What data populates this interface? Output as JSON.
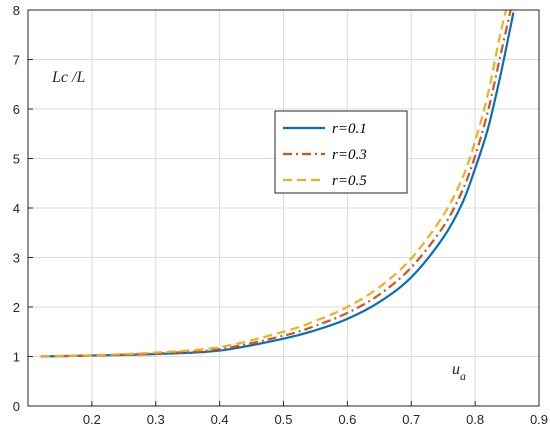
{
  "chart_data": {
    "type": "line",
    "title": "",
    "xlabel": "",
    "ylabel": "",
    "xlim": [
      0.1,
      0.9
    ],
    "ylim": [
      0,
      8
    ],
    "xticks": [
      "0.2",
      "0.3",
      "0.4",
      "0.5",
      "0.6",
      "0.7",
      "0.8",
      "0.9"
    ],
    "yticks": [
      "0",
      "1",
      "2",
      "3",
      "4",
      "5",
      "6",
      "7",
      "8"
    ],
    "grid": true,
    "legend_position": "center-right",
    "annotations": [
      {
        "text": "Lc /L"
      },
      {
        "text": "u",
        "subscript": "a"
      }
    ],
    "x": [
      0.12,
      0.2,
      0.3,
      0.4,
      0.5,
      0.55,
      0.6,
      0.65,
      0.7,
      0.75,
      0.78,
      0.8,
      0.82,
      0.84,
      0.86
    ],
    "series": [
      {
        "name": "r=0.1",
        "color": "#0072BD",
        "style": "solid",
        "values": [
          1.0,
          1.02,
          1.05,
          1.12,
          1.36,
          1.53,
          1.76,
          2.1,
          2.6,
          3.4,
          4.1,
          4.8,
          5.6,
          6.7,
          7.95
        ]
      },
      {
        "name": "r=0.3",
        "color": "#D95319",
        "style": "dashdot",
        "values": [
          1.0,
          1.02,
          1.06,
          1.15,
          1.42,
          1.62,
          1.88,
          2.25,
          2.8,
          3.62,
          4.35,
          5.05,
          5.95,
          7.1,
          8.25
        ]
      },
      {
        "name": "r=0.5",
        "color": "#EDB120",
        "style": "dashed",
        "values": [
          1.0,
          1.025,
          1.08,
          1.19,
          1.5,
          1.72,
          2.0,
          2.4,
          2.98,
          3.85,
          4.6,
          5.35,
          6.3,
          7.55,
          8.6
        ]
      }
    ]
  }
}
